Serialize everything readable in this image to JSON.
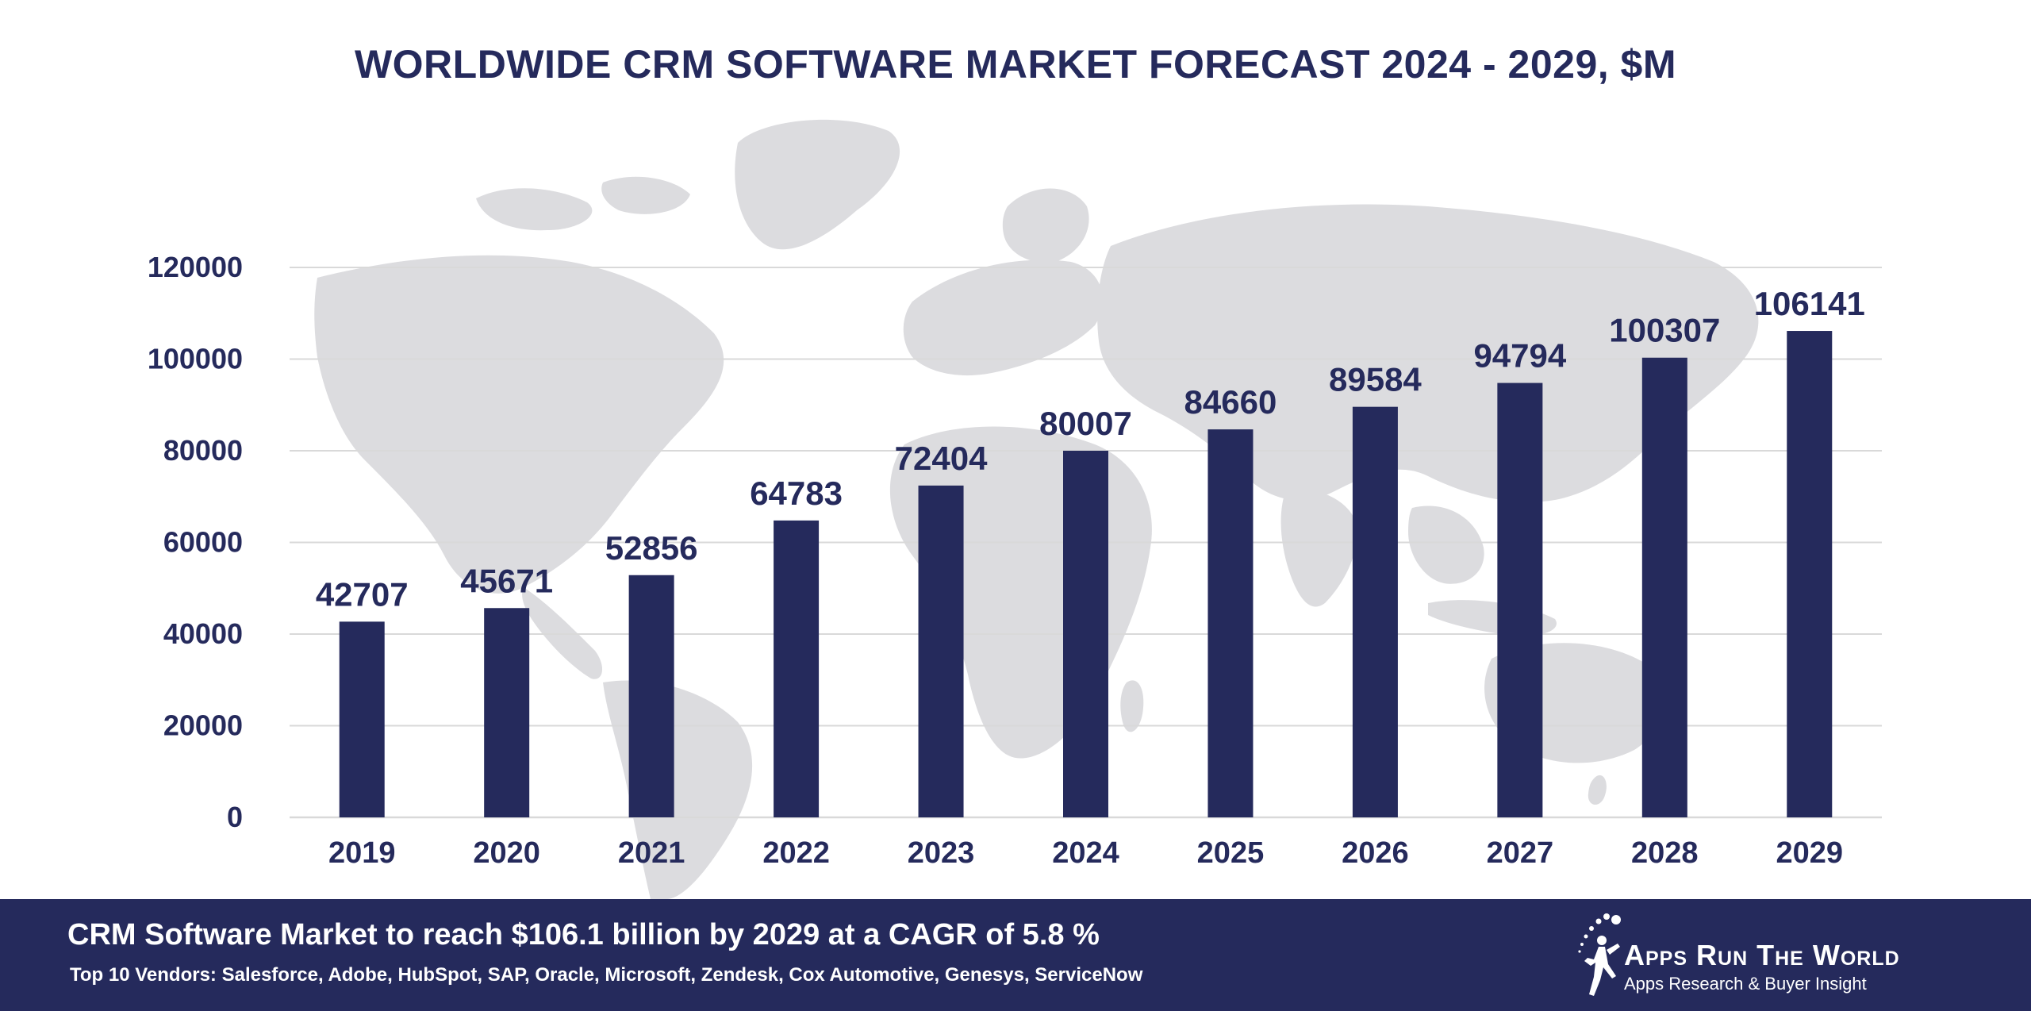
{
  "chart_data": {
    "type": "bar",
    "title": "WORLDWIDE CRM SOFTWARE MARKET FORECAST 2024 - 2029, $M",
    "categories": [
      "2019",
      "2020",
      "2021",
      "2022",
      "2023",
      "2024",
      "2025",
      "2026",
      "2027",
      "2028",
      "2029"
    ],
    "values": [
      42707,
      45671,
      52856,
      64783,
      72404,
      80007,
      84660,
      89584,
      94794,
      100307,
      106141
    ],
    "y_ticks": [
      0,
      20000,
      40000,
      60000,
      80000,
      100000,
      120000
    ],
    "ylim": [
      0,
      120000
    ],
    "xlabel": "",
    "ylabel": "",
    "grid": true,
    "bar_color": "#252a5c",
    "label_color": "#252a5c",
    "grid_color": "#d9d9d9",
    "background_map_color": "#dcdcdf"
  },
  "footer": {
    "headline": "CRM Software Market to reach $106.1 billion by 2029 at a CAGR of 5.8 %",
    "vendors": "Top 10 Vendors: Salesforce, Adobe, HubSpot, SAP, Oracle, Microsoft, Zendesk, Cox Automotive, Genesys, ServiceNow",
    "background_color": "#252a5c"
  },
  "logo": {
    "name": "Apps Run The World",
    "tagline": "Apps Research & Buyer Insight"
  }
}
